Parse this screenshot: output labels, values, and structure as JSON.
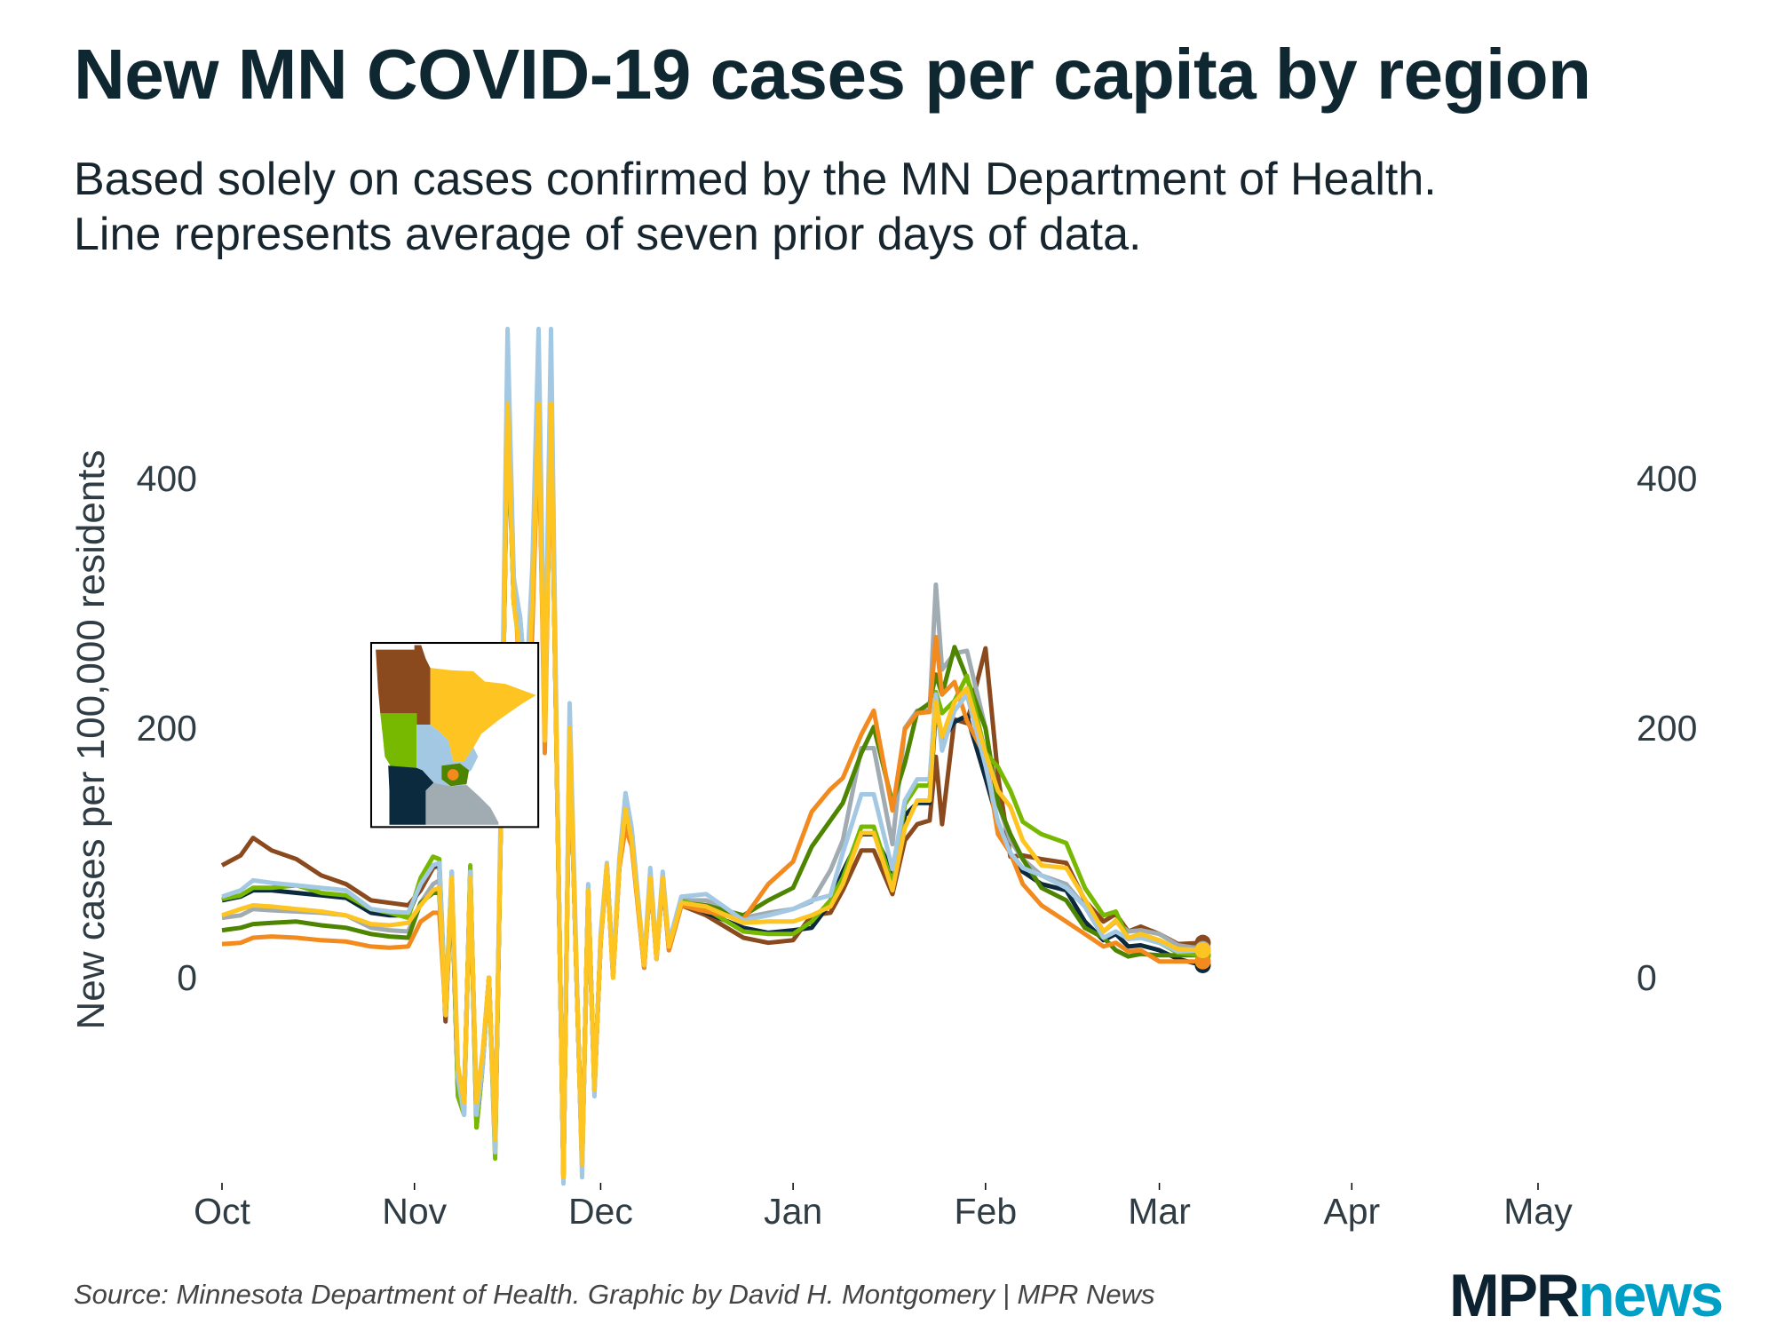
{
  "header": {
    "title": "New MN COVID-19 cases per capita by region",
    "subtitle_line1": "Based solely on cases confirmed by the MN Department of Health.",
    "subtitle_line2": "Line represents average of seven prior days of data."
  },
  "footer": {
    "source": "Source: Minnesota Department of Health. Graphic by David H. Montgomery | MPR News",
    "logo_mpr": "MPR",
    "logo_news": "news"
  },
  "chart_data": {
    "type": "line",
    "title": "New MN COVID-19 cases per capita by region",
    "ylabel": "New cases per 100,000 residents",
    "xlabel": "",
    "ylim": [
      -163,
      523
    ],
    "xlim": [
      "2020-10-01",
      "2021-05-01"
    ],
    "grid": false,
    "legend": "inset map of Minnesota regions, colored by series",
    "y_ticks": [
      0,
      200,
      400
    ],
    "y_axis_sides": [
      "left",
      "right"
    ],
    "x_ticks": [
      {
        "date": "2020-10-01",
        "label": "Oct"
      },
      {
        "date": "2020-11-01",
        "label": "Nov"
      },
      {
        "date": "2020-12-01",
        "label": "Dec"
      },
      {
        "date": "2021-01-01",
        "label": "Jan"
      },
      {
        "date": "2021-02-01",
        "label": "Feb"
      },
      {
        "date": "2021-03-01",
        "label": "Mar"
      },
      {
        "date": "2021-04-01",
        "label": "Apr"
      },
      {
        "date": "2021-05-01",
        "label": "May"
      }
    ],
    "x": [
      "2020-10-01",
      "2020-10-04",
      "2020-10-06",
      "2020-10-09",
      "2020-10-13",
      "2020-10-17",
      "2020-10-21",
      "2020-10-25",
      "2020-10-28",
      "2020-10-31",
      "2020-11-02",
      "2020-11-04",
      "2020-11-05",
      "2020-11-06",
      "2020-11-07",
      "2020-11-08",
      "2020-11-09",
      "2020-11-10",
      "2020-11-11",
      "2020-11-12",
      "2020-11-13",
      "2020-11-14",
      "2020-11-15",
      "2020-11-16",
      "2020-11-17",
      "2020-11-18",
      "2020-11-19",
      "2020-11-20",
      "2020-11-21",
      "2020-11-22",
      "2020-11-23",
      "2020-11-24",
      "2020-11-25",
      "2020-11-26",
      "2020-11-27",
      "2020-11-28",
      "2020-11-29",
      "2020-11-30",
      "2020-12-01",
      "2020-12-02",
      "2020-12-03",
      "2020-12-04",
      "2020-12-05",
      "2020-12-06",
      "2020-12-08",
      "2020-12-09",
      "2020-12-10",
      "2020-12-11",
      "2020-12-12",
      "2020-12-14",
      "2020-12-18",
      "2020-12-24",
      "2020-12-28",
      "2021-01-01",
      "2021-01-04",
      "2021-01-07",
      "2021-01-09",
      "2021-01-12",
      "2021-01-14",
      "2021-01-17",
      "2021-01-19",
      "2021-01-21",
      "2021-01-23",
      "2021-01-24",
      "2021-01-25",
      "2021-01-27",
      "2021-01-29",
      "2021-02-01",
      "2021-02-03",
      "2021-02-05",
      "2021-02-07",
      "2021-02-10",
      "2021-02-14",
      "2021-02-17",
      "2021-02-20",
      "2021-02-22",
      "2021-02-24",
      "2021-02-26",
      "2021-03-01",
      "2021-03-04",
      "2021-03-08"
    ],
    "series": [
      {
        "color": "#8B4A1E",
        "region": "northwest",
        "values": [
          90,
          98,
          112,
          102,
          95,
          82,
          75,
          62,
          60,
          58,
          70,
          88,
          90,
          -35,
          75,
          -90,
          -100,
          80,
          -120,
          -70,
          0,
          -135,
          150,
          450,
          310,
          280,
          210,
          300,
          455,
          195,
          455,
          150,
          -160,
          200,
          20,
          -150,
          70,
          -90,
          30,
          90,
          2,
          88,
          130,
          108,
          8,
          80,
          15,
          78,
          22,
          58,
          50,
          32,
          28,
          30,
          50,
          52,
          70,
          102,
          102,
          67,
          110,
          123,
          126,
          177,
          123,
          207,
          204,
          264,
          162,
          97,
          98,
          95,
          92,
          62,
          45,
          51,
          37,
          41,
          35,
          27,
          28
        ]
      },
      {
        "color": "#0C2A3E",
        "region": "southwest",
        "values": [
          62,
          65,
          70,
          70,
          68,
          66,
          64,
          52,
          50,
          50,
          75,
          90,
          90,
          -30,
          80,
          -90,
          -105,
          85,
          -110,
          -65,
          0,
          -135,
          150,
          455,
          300,
          280,
          220,
          300,
          455,
          200,
          455,
          150,
          -160,
          200,
          20,
          -150,
          70,
          -90,
          30,
          90,
          3,
          90,
          140,
          112,
          10,
          82,
          18,
          80,
          25,
          62,
          52,
          40,
          36,
          38,
          40,
          60,
          85,
          115,
          115,
          85,
          130,
          140,
          140,
          215,
          190,
          205,
          210,
          160,
          125,
          100,
          85,
          75,
          70,
          45,
          30,
          35,
          25,
          26,
          22,
          15,
          10
        ]
      },
      {
        "color": "#A0ABB2",
        "region": "southeast",
        "values": [
          48,
          50,
          55,
          54,
          53,
          52,
          50,
          40,
          38,
          37,
          60,
          75,
          78,
          -30,
          78,
          -85,
          -105,
          82,
          -110,
          -65,
          0,
          -135,
          150,
          455,
          300,
          270,
          210,
          300,
          455,
          195,
          455,
          150,
          -160,
          200,
          20,
          -150,
          70,
          -90,
          30,
          90,
          2,
          90,
          135,
          110,
          10,
          80,
          18,
          80,
          25,
          62,
          62,
          48,
          52,
          55,
          61,
          86,
          110,
          184,
          184,
          107,
          200,
          214,
          214,
          315,
          247,
          260,
          262,
          200,
          140,
          110,
          95,
          82,
          75,
          57,
          37,
          45,
          37,
          38,
          35,
          26,
          23
        ]
      },
      {
        "color": "#4E8500",
        "region": "metro suburbs",
        "values": [
          38,
          40,
          43,
          44,
          45,
          42,
          40,
          35,
          33,
          32,
          60,
          68,
          68,
          -30,
          78,
          -88,
          -100,
          82,
          -110,
          -65,
          0,
          -135,
          150,
          455,
          300,
          275,
          200,
          300,
          455,
          195,
          455,
          150,
          -160,
          200,
          20,
          -150,
          70,
          -90,
          30,
          90,
          2,
          90,
          132,
          108,
          10,
          80,
          18,
          80,
          25,
          60,
          58,
          50,
          62,
          72,
          105,
          126,
          140,
          180,
          201,
          140,
          172,
          213,
          220,
          243,
          227,
          265,
          240,
          200,
          140,
          115,
          95,
          72,
          62,
          40,
          32,
          22,
          17,
          19,
          18,
          18,
          18
        ]
      },
      {
        "color": "#77B800",
        "region": "west central",
        "values": [
          63,
          66,
          72,
          72,
          74,
          68,
          66,
          55,
          52,
          48,
          80,
          97,
          95,
          -25,
          85,
          -95,
          -110,
          90,
          -120,
          -70,
          0,
          -145,
          150,
          450,
          300,
          290,
          230,
          290,
          450,
          200,
          450,
          150,
          -158,
          200,
          20,
          -150,
          70,
          -90,
          30,
          90,
          3,
          90,
          135,
          110,
          10,
          82,
          18,
          80,
          25,
          62,
          55,
          37,
          35,
          35,
          45,
          62,
          80,
          121,
          121,
          75,
          139,
          154,
          154,
          229,
          212,
          222,
          242,
          180,
          169,
          150,
          125,
          115,
          108,
          72,
          50,
          53,
          31,
          32,
          28,
          20,
          18
        ]
      },
      {
        "color": "#F28A1E",
        "region": "metro core",
        "values": [
          27,
          28,
          32,
          33,
          32,
          30,
          29,
          25,
          24,
          25,
          45,
          52,
          52,
          -28,
          75,
          -75,
          -95,
          78,
          -100,
          -60,
          0,
          -130,
          150,
          450,
          320,
          240,
          170,
          280,
          450,
          180,
          450,
          150,
          -160,
          195,
          20,
          -150,
          70,
          -90,
          28,
          88,
          0,
          88,
          120,
          105,
          8,
          78,
          15,
          78,
          22,
          58,
          53,
          47,
          75,
          93,
          133,
          151,
          160,
          195,
          214,
          134,
          199,
          212,
          213,
          273,
          227,
          237,
          206,
          177,
          115,
          100,
          75,
          58,
          45,
          35,
          25,
          28,
          21,
          22,
          13,
          13,
          13
        ]
      },
      {
        "color": "#A3C8E4",
        "region": "central",
        "values": [
          65,
          70,
          78,
          76,
          74,
          72,
          70,
          55,
          53,
          52,
          75,
          90,
          92,
          -25,
          85,
          -80,
          -110,
          85,
          -110,
          -70,
          0,
          -140,
          170,
          520,
          320,
          290,
          230,
          330,
          520,
          220,
          520,
          160,
          -165,
          220,
          30,
          -160,
          75,
          -95,
          35,
          92,
          5,
          95,
          148,
          120,
          12,
          88,
          20,
          85,
          28,
          65,
          67,
          46,
          50,
          55,
          62,
          66,
          100,
          147,
          147,
          87,
          142,
          159,
          159,
          227,
          182,
          214,
          227,
          170,
          125,
          100,
          88,
          82,
          72,
          57,
          32,
          37,
          31,
          32,
          28,
          21,
          22
        ]
      },
      {
        "color": "#FDC422",
        "region": "northeast",
        "values": [
          50,
          55,
          58,
          57,
          55,
          53,
          50,
          43,
          42,
          44,
          58,
          70,
          72,
          -30,
          80,
          -70,
          -100,
          80,
          -100,
          -60,
          0,
          -130,
          150,
          460,
          300,
          260,
          200,
          300,
          460,
          190,
          460,
          150,
          -160,
          200,
          20,
          -150,
          70,
          -90,
          30,
          90,
          0,
          90,
          135,
          110,
          10,
          80,
          15,
          80,
          25,
          60,
          57,
          44,
          45,
          45,
          50,
          57,
          75,
          116,
          116,
          70,
          120,
          142,
          142,
          221,
          193,
          221,
          232,
          180,
          150,
          137,
          110,
          90,
          88,
          63,
          37,
          46,
          32,
          35,
          30,
          23,
          22
        ]
      }
    ],
    "end_markers": true
  }
}
